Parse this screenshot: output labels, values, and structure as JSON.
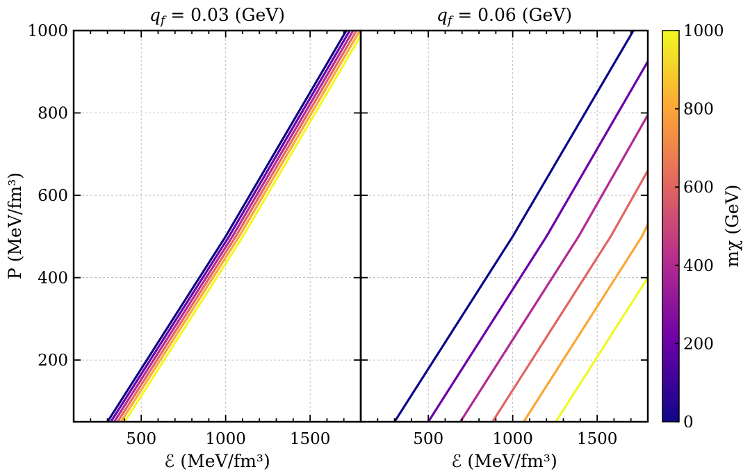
{
  "figure": {
    "ylabel": "P (MeV/fm³)",
    "xlabel": "ℰ (MeV/fm³)",
    "colorbar_label": "mχ (GeV)",
    "colorbar_ticks": [
      "0",
      "200",
      "400",
      "600",
      "800",
      "1000"
    ]
  },
  "chart_data": [
    {
      "type": "line",
      "title": "q_f = 0.03 (GeV)",
      "title_var": "q",
      "title_sub": "f",
      "title_rest": " = 0.03 (GeV)",
      "xlabel": "ℰ (MeV/fm³)",
      "ylabel": "P (MeV/fm³)",
      "xlim": [
        100,
        1800
      ],
      "ylim": [
        50,
        1000
      ],
      "xticks": [
        500,
        1000,
        1500
      ],
      "yticks": [
        200,
        400,
        600,
        800,
        1000
      ],
      "grid": true,
      "series": [
        {
          "name": "mχ = 0 GeV",
          "color": "#0d0887",
          "x": [
            300,
            1000,
            1715
          ],
          "y": [
            50,
            500,
            1000
          ]
        },
        {
          "name": "mχ = 200 GeV",
          "color": "#6a00a8",
          "x": [
            320,
            1020,
            1735
          ],
          "y": [
            50,
            500,
            1000
          ]
        },
        {
          "name": "mχ = 400 GeV",
          "color": "#b12a90",
          "x": [
            340,
            1040,
            1755
          ],
          "y": [
            50,
            500,
            1000
          ]
        },
        {
          "name": "mχ = 600 GeV",
          "color": "#e16462",
          "x": [
            360,
            1060,
            1775
          ],
          "y": [
            50,
            500,
            1000
          ]
        },
        {
          "name": "mχ = 800 GeV",
          "color": "#fca636",
          "x": [
            380,
            1080,
            1795
          ],
          "y": [
            50,
            500,
            1000
          ]
        },
        {
          "name": "mχ = 1000 GeV",
          "color": "#f0f921",
          "x": [
            402,
            1102,
            1817
          ],
          "y": [
            50,
            500,
            1000
          ]
        }
      ]
    },
    {
      "type": "line",
      "title": "q_f = 0.06 (GeV)",
      "title_var": "q",
      "title_sub": "f",
      "title_rest": " = 0.06 (GeV)",
      "xlabel": "ℰ (MeV/fm³)",
      "xlim": [
        100,
        1800
      ],
      "ylim": [
        50,
        1000
      ],
      "xticks": [
        500,
        1000,
        1500
      ],
      "yticks": [
        200,
        400,
        600,
        800,
        1000
      ],
      "grid": true,
      "series": [
        {
          "name": "mχ = 0 GeV",
          "color": "#0d0887",
          "x": [
            300,
            1000,
            1715
          ],
          "y": [
            50,
            500,
            1000
          ]
        },
        {
          "name": "mχ = 200 GeV",
          "color": "#6a00a8",
          "x": [
            500,
            1200,
            1800
          ],
          "y": [
            50,
            500,
            925
          ]
        },
        {
          "name": "mχ = 400 GeV",
          "color": "#b12a90",
          "x": [
            690,
            1390,
            1800
          ],
          "y": [
            50,
            500,
            795
          ]
        },
        {
          "name": "mχ = 600 GeV",
          "color": "#e16462",
          "x": [
            880,
            1580,
            1800
          ],
          "y": [
            50,
            500,
            660
          ]
        },
        {
          "name": "mχ = 800 GeV",
          "color": "#fca636",
          "x": [
            1065,
            1765,
            1800
          ],
          "y": [
            50,
            500,
            530
          ]
        },
        {
          "name": "mχ = 1000 GeV",
          "color": "#f0f921",
          "x": [
            1255,
            1800
          ],
          "y": [
            50,
            400
          ]
        }
      ]
    }
  ],
  "colorbar": {
    "range": [
      0,
      1000
    ],
    "stops": [
      "#0d0887",
      "#6a00a8",
      "#b12a90",
      "#e16462",
      "#fca636",
      "#f0f921"
    ]
  }
}
